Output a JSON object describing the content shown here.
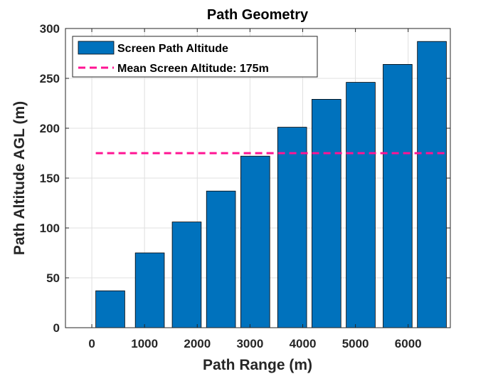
{
  "chart_data": {
    "type": "bar",
    "title": "Path Geometry",
    "xlabel": "Path Range (m)",
    "ylabel": "Path Altitude AGL (m)",
    "xlim": [
      -500,
      6800
    ],
    "ylim": [
      0,
      300
    ],
    "xticks": [
      0,
      1000,
      2000,
      3000,
      4000,
      5000,
      6000
    ],
    "yticks": [
      0,
      50,
      100,
      150,
      200,
      250,
      300
    ],
    "x": [
      350,
      1100,
      1800,
      2450,
      3100,
      3800,
      4450,
      5100,
      5800,
      6450
    ],
    "x_note": "",
    "bar_width": 550,
    "series": [
      {
        "name": "Screen Path Altitude",
        "type": "bar",
        "color": "#0072BD",
        "values": [
          37,
          75,
          106,
          137,
          172,
          201,
          229,
          246,
          264,
          287
        ]
      },
      {
        "name": "Mean Screen Altitude: 175m",
        "type": "line",
        "style": "dashed",
        "color": "#FF1493",
        "value": 175
      }
    ],
    "grid": true,
    "legend_position": "top-left"
  }
}
